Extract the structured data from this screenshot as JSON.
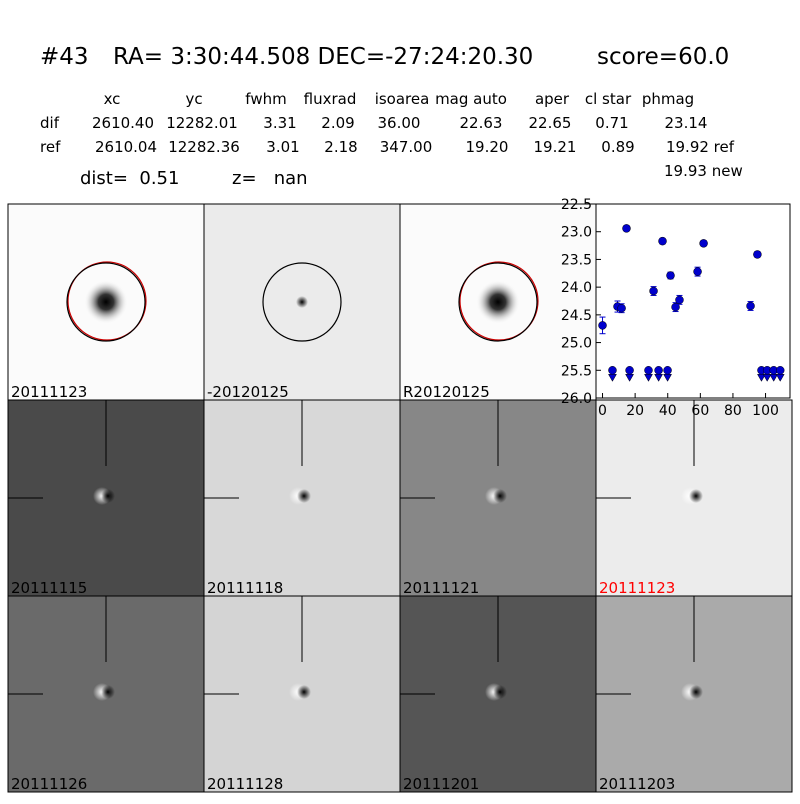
{
  "header": {
    "id": "#43",
    "coords": "RA= 3:30:44.508 DEC=-27:24:20.30",
    "score": "score=60.0"
  },
  "table": {
    "columns": [
      "xc",
      "yc",
      "fwhm",
      "fluxrad",
      "isoarea",
      "mag auto",
      "aper",
      "cl star",
      "phmag"
    ],
    "rows": [
      [
        "dif",
        "2610.40",
        "12282.01",
        "3.31",
        "2.09",
        "36.00",
        "22.63",
        "22.65",
        "0.71",
        "23.14"
      ],
      [
        "ref",
        "2610.04",
        "12282.36",
        "3.01",
        "2.18",
        "347.00",
        "19.20",
        "19.21",
        "0.89",
        "19.92 ref"
      ]
    ],
    "extra": "19.93 new"
  },
  "dist": "dist=  0.51",
  "z": "z=   nan",
  "panels": [
    "20111123",
    "-20120125",
    "R20120125",
    "20111115",
    "20111118",
    "20111121",
    "20111123",
    "20111126",
    "20111128",
    "20111201",
    "20111203"
  ],
  "chart_data": {
    "type": "scatter",
    "series": [
      {
        "color": "#0000cc",
        "marker": "circle",
        "x": [
          0,
          9.2,
          11.7,
          14.7,
          31.3,
          36.8,
          41.7,
          44.8,
          47.2,
          58.3,
          62,
          90.8,
          95
        ],
        "values": [
          24.69,
          24.35,
          24.38,
          22.94,
          24.07,
          23.17,
          23.79,
          24.36,
          24.23,
          23.72,
          23.21,
          24.34,
          23.41
        ],
        "errors": [
          0.15,
          0.1,
          0.08,
          0.05,
          0.08,
          0.05,
          0.06,
          0.08,
          0.08,
          0.08,
          0.05,
          0.08,
          0.05
        ]
      },
      {
        "color": "#0000cc",
        "marker": "limit",
        "x": [
          6.1,
          16.6,
          28.2,
          34.4,
          39.9,
          97.5,
          101,
          105,
          109
        ],
        "values": [
          25.5,
          25.5,
          25.5,
          25.5,
          25.5,
          25.5,
          25.5,
          25.5,
          25.5
        ]
      }
    ],
    "xlim": [
      -4,
      115
    ],
    "xticks": [
      0,
      20,
      40,
      60,
      80,
      100
    ],
    "ylim": [
      26.0,
      22.5
    ],
    "yticks": [
      22.5,
      {
        "value": 23,
        "label": "23.0"
      },
      23.5,
      {
        "value": 24,
        "label": "24.0"
      },
      24.5,
      {
        "value": 25,
        "label": "25.0"
      },
      25.5,
      {
        "value": 26,
        "label": "26.0"
      }
    ]
  }
}
